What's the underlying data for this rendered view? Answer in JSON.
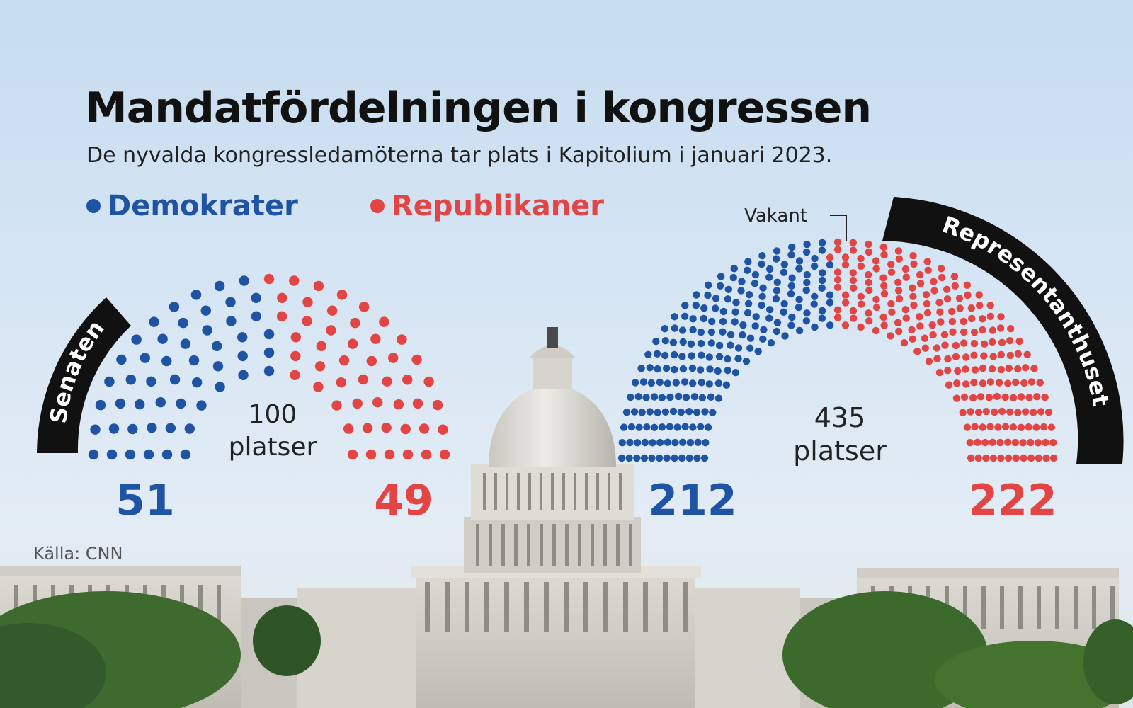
{
  "title": "Mandatfördelningen i kongressen",
  "subtitle": "De nyvalda kongressledamöterna tar plats i Kapitolium i januari 2023.",
  "legend": {
    "democrats": "Demokrater",
    "republicans": "Republikaner"
  },
  "colors": {
    "democrats": "#1f53a3",
    "republicans": "#e34544",
    "vacant": "#1f53a3",
    "banner": "#111111"
  },
  "source": "Källa: CNN",
  "chart_data": [
    {
      "type": "parliament",
      "label": "Senaten",
      "total_label": [
        "100",
        "platser"
      ],
      "total": 100,
      "series": [
        {
          "name": "Demokrater",
          "value": 51
        },
        {
          "name": "Republikaner",
          "value": 49
        }
      ],
      "data_labels": [
        "51",
        "49"
      ]
    },
    {
      "type": "parliament",
      "label": "Representanthuset",
      "total_label": [
        "435",
        "platser"
      ],
      "total": 435,
      "series": [
        {
          "name": "Demokrater",
          "value": 212
        },
        {
          "name": "Vakant",
          "value": 1
        },
        {
          "name": "Republikaner",
          "value": 222
        }
      ],
      "data_labels": [
        "212",
        "222"
      ],
      "annotation": "Vakant"
    }
  ]
}
